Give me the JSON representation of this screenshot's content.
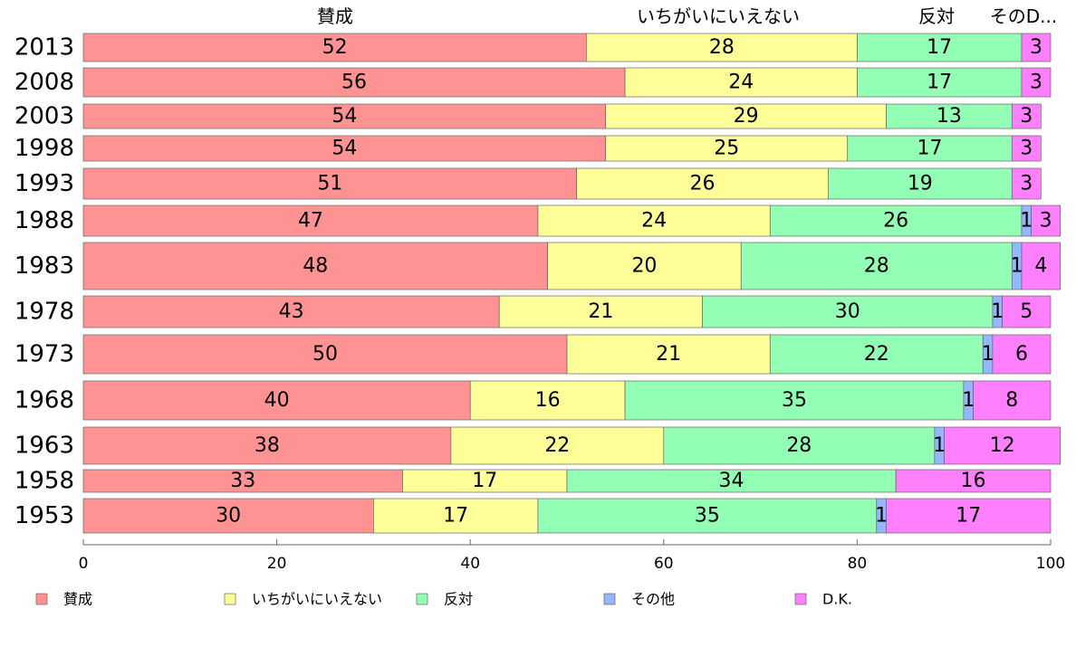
{
  "chart_data": {
    "type": "bar",
    "orientation": "horizontal",
    "stacked": true,
    "categories": [
      "2013",
      "2008",
      "2003",
      "1998",
      "1993",
      "1988",
      "1983",
      "1978",
      "1973",
      "1968",
      "1963",
      "1958",
      "1953"
    ],
    "series": [
      {
        "name": "賛成",
        "color": "#ff9393",
        "values": [
          52,
          56,
          54,
          54,
          51,
          47,
          48,
          43,
          50,
          40,
          38,
          33,
          30
        ]
      },
      {
        "name": "いちがいにいえない",
        "color": "#ffff99",
        "values": [
          28,
          24,
          29,
          25,
          26,
          24,
          20,
          21,
          21,
          16,
          22,
          17,
          17
        ]
      },
      {
        "name": "反対",
        "color": "#93ffb4",
        "values": [
          17,
          17,
          13,
          17,
          19,
          26,
          28,
          30,
          22,
          35,
          28,
          34,
          35
        ]
      },
      {
        "name": "その他",
        "color": "#93b6ff",
        "values": [
          0,
          0,
          0,
          0,
          0,
          1,
          1,
          1,
          1,
          1,
          1,
          0,
          1
        ]
      },
      {
        "name": "D.K.",
        "color": "#ff80ff",
        "values": [
          3,
          3,
          3,
          3,
          3,
          3,
          4,
          5,
          6,
          8,
          12,
          16,
          17
        ]
      }
    ],
    "top_labels": [
      "賛成",
      "いちがいにいえない",
      "反対",
      "そのD..."
    ],
    "xlim": [
      0,
      100
    ],
    "xticks": [
      "0",
      "20",
      "40",
      "60",
      "80",
      "100"
    ],
    "grid": false,
    "legend_position": "bottom"
  }
}
